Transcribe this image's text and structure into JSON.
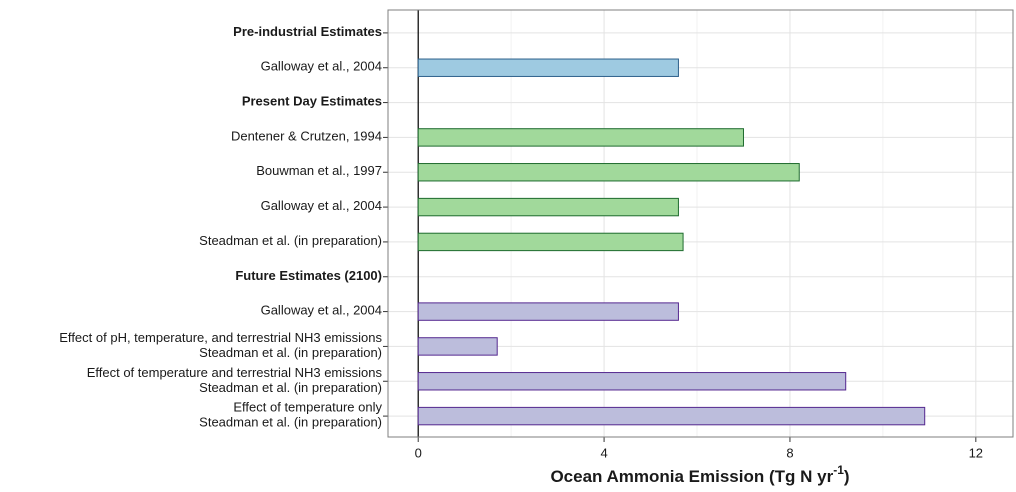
{
  "chart_data": {
    "type": "barh",
    "xlabel": [
      "Ocean Ammonia Emission (Tg N yr",
      "-1",
      ")"
    ],
    "categories": [
      [
        "Pre-industrial Estimates"
      ],
      [
        "Galloway et al., 2004"
      ],
      [
        "Present Day Estimates"
      ],
      [
        "Dentener & Crutzen, 1994"
      ],
      [
        "Bouwman et al., 1997"
      ],
      [
        "Galloway et al., 2004"
      ],
      [
        "Steadman et al. (in preparation)"
      ],
      [
        "Future Estimates (2100)"
      ],
      [
        "Galloway et al., 2004"
      ],
      [
        "Effect of pH, temperature, and terrestrial NH3 emissions",
        "Steadman et al. (in preparation)"
      ],
      [
        "Effect of temperature and terrestrial NH3 emissions",
        "Steadman et al. (in preparation)"
      ],
      [
        "Effect of temperature only",
        "Steadman et al. (in preparation)"
      ]
    ],
    "bold": [
      true,
      false,
      true,
      false,
      false,
      false,
      false,
      true,
      false,
      false,
      false,
      false
    ],
    "values": [
      null,
      5.6,
      null,
      7.0,
      8.2,
      5.6,
      5.7,
      null,
      5.6,
      1.7,
      9.2,
      10.9
    ],
    "colors": [
      null,
      "#9ecae1",
      null,
      "#a1d99b",
      "#a1d99b",
      "#a1d99b",
      "#a1d99b",
      null,
      "#bcbddc",
      "#bcbddc",
      "#bcbddc",
      "#bcbddc"
    ],
    "edgecolors": [
      null,
      "#2b5f8a",
      null,
      "#1e6b2e",
      "#1e6b2e",
      "#1e6b2e",
      "#1e6b2e",
      null,
      "#54278f",
      "#54278f",
      "#54278f",
      "#54278f"
    ],
    "xlim": [
      -0.65,
      12.8
    ],
    "xticks": [
      0,
      4,
      8,
      12
    ],
    "xminor": [
      2,
      6,
      10
    ],
    "grid": true
  }
}
